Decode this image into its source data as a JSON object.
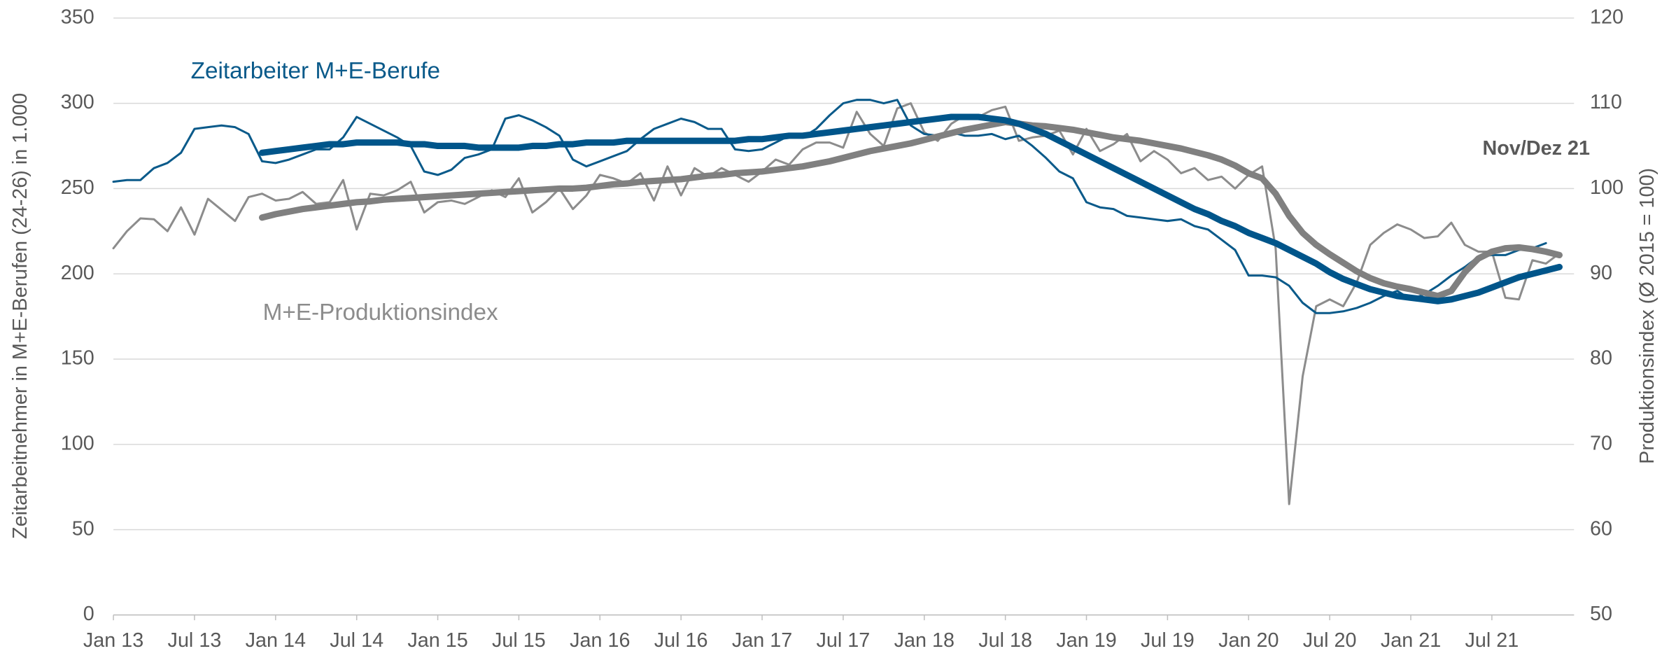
{
  "chart_data": {
    "type": "line",
    "categories": [
      "Jan 13",
      null,
      null,
      null,
      null,
      null,
      "Jul 13",
      null,
      null,
      null,
      null,
      null,
      "Jan 14",
      null,
      null,
      null,
      null,
      null,
      "Jul 14",
      null,
      null,
      null,
      null,
      null,
      "Jan 15",
      null,
      null,
      null,
      null,
      null,
      "Jul 15",
      null,
      null,
      null,
      null,
      null,
      "Jan 16",
      null,
      null,
      null,
      null,
      null,
      "Jul 16",
      null,
      null,
      null,
      null,
      null,
      "Jan 17",
      null,
      null,
      null,
      null,
      null,
      "Jul 17",
      null,
      null,
      null,
      null,
      null,
      "Jan 18",
      null,
      null,
      null,
      null,
      null,
      "Jul 18",
      null,
      null,
      null,
      null,
      null,
      "Jan 19",
      null,
      null,
      null,
      null,
      null,
      "Jul 19",
      null,
      null,
      null,
      null,
      null,
      "Jan 20",
      null,
      null,
      null,
      null,
      null,
      "Jul 20",
      null,
      null,
      null,
      null,
      null,
      "Jan 21",
      null,
      null,
      null,
      null,
      null,
      "Jul 21",
      null,
      null,
      null,
      null,
      null
    ],
    "y_label": "Zeitarbeitnehmer in M+E-Berufen (24-26) in 1.000",
    "y2_label": "Produktionsindex (Ø 2015 = 100)",
    "ylim": [
      0,
      350
    ],
    "yticks": [
      0,
      50,
      100,
      150,
      200,
      250,
      300,
      350
    ],
    "y2lim": [
      50,
      120
    ],
    "y2ticks": [
      50,
      60,
      70,
      80,
      90,
      100,
      110,
      120
    ],
    "grid": true,
    "annotations": [
      {
        "text": "Nov/Dez 21"
      }
    ],
    "series": [
      {
        "name": "Zeitarbeiter M+E-Berufe",
        "color": "#0a5a8a",
        "width": 2,
        "values": [
          254,
          255,
          255,
          262,
          265,
          271,
          285,
          286,
          287,
          286,
          282,
          266,
          265,
          267,
          270,
          273,
          273,
          280,
          292,
          288,
          284,
          280,
          275,
          260,
          258,
          261,
          268,
          270,
          273,
          291,
          293,
          290,
          286,
          281,
          267,
          263,
          266,
          269,
          272,
          279,
          285,
          288,
          291,
          289,
          285,
          285,
          273,
          272,
          273,
          277,
          281,
          280,
          285,
          293,
          300,
          302,
          302,
          300,
          302,
          287,
          282,
          281,
          283,
          281,
          281,
          282,
          279,
          281,
          275,
          268,
          260,
          256,
          242,
          239,
          238,
          234,
          233,
          232,
          231,
          232,
          228,
          226,
          220,
          214,
          199,
          199,
          198,
          193,
          183,
          177,
          177,
          178,
          180,
          183,
          187,
          190,
          185,
          188,
          193,
          199,
          204,
          210,
          211,
          211,
          214,
          215,
          218,
          null
        ]
      },
      {
        "color": "#00558a",
        "width": 6,
        "values": [
          null,
          null,
          null,
          null,
          null,
          null,
          null,
          null,
          null,
          null,
          null,
          271,
          272,
          273,
          274,
          275,
          276,
          276,
          277,
          277,
          277,
          277,
          276,
          276,
          275,
          275,
          275,
          274,
          274,
          274,
          274,
          275,
          275,
          276,
          276,
          277,
          277,
          277,
          278,
          278,
          278,
          278,
          278,
          278,
          278,
          278,
          278,
          279,
          279,
          280,
          281,
          281,
          282,
          283,
          284,
          285,
          286,
          287,
          288,
          289,
          290,
          291,
          292,
          292,
          292,
          291,
          290,
          288,
          285,
          282,
          278,
          274,
          270,
          266,
          262,
          258,
          254,
          250,
          246,
          242,
          238,
          235,
          231,
          228,
          224,
          221,
          218,
          214,
          210,
          206,
          201,
          197,
          194,
          191,
          189,
          187,
          186,
          185,
          184,
          185,
          187,
          189,
          192,
          195,
          198,
          200,
          202,
          204
        ]
      },
      {
        "name": "M+E-Produktionsindex",
        "color": "#8c8c8c",
        "width": 2,
        "axis": "y2",
        "values": [
          93,
          95,
          96.5,
          96.4,
          95,
          97.8,
          94.6,
          98.8,
          97.5,
          96.2,
          99,
          99.4,
          98.6,
          98.8,
          99.6,
          98.2,
          98.4,
          101,
          95.2,
          99.4,
          99.2,
          99.8,
          100.8,
          97.2,
          98.4,
          98.6,
          98.2,
          99,
          99.8,
          99,
          101.2,
          97.2,
          98.4,
          100,
          97.6,
          99.2,
          101.6,
          101.2,
          100.6,
          101.8,
          98.6,
          102.6,
          99.2,
          102.4,
          101.4,
          102.4,
          101.6,
          100.8,
          102,
          103.4,
          102.8,
          104.6,
          105.4,
          105.4,
          104.8,
          109,
          106.4,
          105,
          109.4,
          110,
          106.6,
          105.6,
          107.6,
          108.6,
          108.4,
          109.2,
          109.6,
          105.6,
          106,
          106.2,
          106.8,
          104,
          107,
          104.4,
          105.2,
          106.4,
          103.2,
          104.4,
          103.4,
          101.8,
          102.4,
          101,
          101.4,
          100,
          101.6,
          102.6,
          93,
          63,
          78,
          86.2,
          87,
          86.2,
          89,
          93.4,
          94.8,
          95.8,
          95.2,
          94.2,
          94.4,
          96,
          93.4,
          92.6,
          92.6,
          87.2,
          87,
          91.6,
          91.2,
          92.4
        ]
      },
      {
        "color": "#808080",
        "width": 6,
        "axis": "y2",
        "values": [
          null,
          null,
          null,
          null,
          null,
          null,
          null,
          null,
          null,
          null,
          null,
          96.6,
          97,
          97.3,
          97.6,
          97.8,
          98,
          98.2,
          98.4,
          98.5,
          98.7,
          98.8,
          98.9,
          99,
          99.1,
          99.2,
          99.3,
          99.4,
          99.5,
          99.6,
          99.7,
          99.8,
          99.9,
          100,
          100,
          100.1,
          100.3,
          100.5,
          100.6,
          100.8,
          100.9,
          101,
          101.1,
          101.3,
          101.5,
          101.6,
          101.8,
          101.9,
          102,
          102.2,
          102.4,
          102.6,
          102.9,
          103.2,
          103.6,
          104,
          104.4,
          104.7,
          105,
          105.3,
          105.7,
          106.1,
          106.5,
          106.9,
          107.2,
          107.5,
          107.8,
          107.6,
          107.4,
          107.3,
          107.1,
          106.9,
          106.6,
          106.3,
          106,
          105.8,
          105.6,
          105.3,
          105,
          104.7,
          104.3,
          103.9,
          103.4,
          102.7,
          101.8,
          101.2,
          99.4,
          96.8,
          94.8,
          93.4,
          92.3,
          91.3,
          90.3,
          89.5,
          88.9,
          88.5,
          88.2,
          87.8,
          87.4,
          88,
          90.2,
          91.8,
          92.6,
          93,
          93.1,
          92.9,
          92.6,
          92.2
        ]
      }
    ]
  }
}
